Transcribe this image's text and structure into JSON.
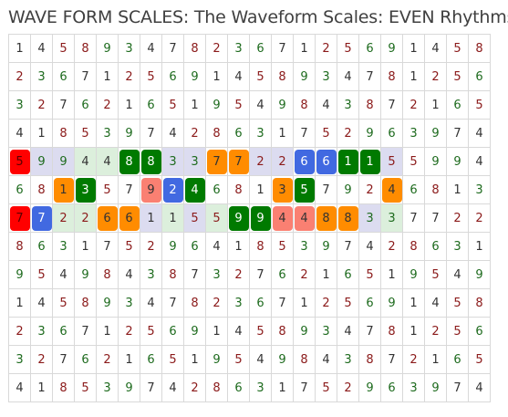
{
  "title": "WAVE FORM SCALES: The Waveform Scales: EVEN Rhythms",
  "colors": {
    "red": "#ff0000",
    "blue": "#4169e1",
    "green": "#007a00",
    "orange": "#ff8c00",
    "salmon": "#fa8072",
    "row_band": "#dcdcf0",
    "pale_green": "#dcefdc",
    "digit": "#333333",
    "digit_warm": "#8b1a1a",
    "digit_green": "#1e6b1e"
  },
  "grid": {
    "rows": [
      [
        "1",
        "4",
        "5",
        "8",
        "9",
        "3",
        "4",
        "7",
        "8",
        "2",
        "3",
        "6",
        "7",
        "1",
        "2",
        "5",
        "6",
        "9",
        "1",
        "4",
        "5",
        "8"
      ],
      [
        "2",
        "3",
        "6",
        "7",
        "1",
        "2",
        "5",
        "6",
        "9",
        "1",
        "4",
        "5",
        "8",
        "9",
        "3",
        "4",
        "7",
        "8",
        "1",
        "2",
        "5",
        "6"
      ],
      [
        "3",
        "2",
        "7",
        "6",
        "2",
        "1",
        "6",
        "5",
        "1",
        "9",
        "5",
        "4",
        "9",
        "8",
        "4",
        "3",
        "8",
        "7",
        "2",
        "1",
        "6",
        "5"
      ],
      [
        "4",
        "1",
        "8",
        "5",
        "3",
        "9",
        "7",
        "4",
        "2",
        "8",
        "6",
        "3",
        "1",
        "7",
        "5",
        "2",
        "9",
        "6",
        "3",
        "9",
        "7",
        "4"
      ],
      [
        "5",
        "9",
        "9",
        "4",
        "4",
        "8",
        "8",
        "3",
        "3",
        "7",
        "7",
        "2",
        "2",
        "6",
        "6",
        "1",
        "1",
        "5",
        "5",
        "9",
        "9",
        "4"
      ],
      [
        "6",
        "8",
        "1",
        "3",
        "5",
        "7",
        "9",
        "2",
        "4",
        "6",
        "8",
        "1",
        "3",
        "5",
        "7",
        "9",
        "2",
        "4",
        "6",
        "8",
        "1",
        "3"
      ],
      [
        "7",
        "7",
        "2",
        "2",
        "6",
        "6",
        "1",
        "1",
        "5",
        "5",
        "9",
        "9",
        "4",
        "4",
        "8",
        "8",
        "3",
        "3",
        "7",
        "7",
        "2",
        "2"
      ],
      [
        "8",
        "6",
        "3",
        "1",
        "7",
        "5",
        "2",
        "9",
        "6",
        "4",
        "1",
        "8",
        "5",
        "3",
        "9",
        "7",
        "4",
        "2",
        "8",
        "6",
        "3",
        "1"
      ],
      [
        "9",
        "5",
        "4",
        "9",
        "8",
        "4",
        "3",
        "8",
        "7",
        "3",
        "2",
        "7",
        "6",
        "2",
        "1",
        "6",
        "5",
        "1",
        "9",
        "5",
        "4",
        "9"
      ],
      [
        "1",
        "4",
        "5",
        "8",
        "9",
        "3",
        "4",
        "7",
        "8",
        "2",
        "3",
        "6",
        "7",
        "1",
        "2",
        "5",
        "6",
        "9",
        "1",
        "4",
        "5",
        "8"
      ],
      [
        "2",
        "3",
        "6",
        "7",
        "1",
        "2",
        "5",
        "6",
        "9",
        "1",
        "4",
        "5",
        "8",
        "9",
        "3",
        "4",
        "7",
        "8",
        "1",
        "2",
        "5",
        "6"
      ],
      [
        "3",
        "2",
        "7",
        "6",
        "2",
        "1",
        "6",
        "5",
        "1",
        "9",
        "5",
        "4",
        "9",
        "8",
        "4",
        "3",
        "8",
        "7",
        "2",
        "1",
        "6",
        "5"
      ],
      [
        "4",
        "1",
        "8",
        "5",
        "3",
        "9",
        "7",
        "4",
        "2",
        "8",
        "6",
        "3",
        "1",
        "7",
        "5",
        "2",
        "9",
        "6",
        "3",
        "9",
        "7",
        "4"
      ]
    ],
    "highlights": [
      {
        "row": 4,
        "col": 0,
        "color": "red"
      },
      {
        "row": 4,
        "col": 1,
        "color": "row_band"
      },
      {
        "row": 4,
        "col": 2,
        "color": "row_band"
      },
      {
        "row": 4,
        "col": 3,
        "color": "pale_green"
      },
      {
        "row": 4,
        "col": 4,
        "color": "pale_green"
      },
      {
        "row": 4,
        "col": 5,
        "color": "green"
      },
      {
        "row": 4,
        "col": 6,
        "color": "green"
      },
      {
        "row": 4,
        "col": 7,
        "color": "row_band"
      },
      {
        "row": 4,
        "col": 8,
        "color": "row_band"
      },
      {
        "row": 4,
        "col": 9,
        "color": "orange"
      },
      {
        "row": 4,
        "col": 10,
        "color": "orange"
      },
      {
        "row": 4,
        "col": 11,
        "color": "row_band"
      },
      {
        "row": 4,
        "col": 12,
        "color": "row_band"
      },
      {
        "row": 4,
        "col": 13,
        "color": "blue"
      },
      {
        "row": 4,
        "col": 14,
        "color": "blue"
      },
      {
        "row": 4,
        "col": 15,
        "color": "green"
      },
      {
        "row": 4,
        "col": 16,
        "color": "green"
      },
      {
        "row": 4,
        "col": 17,
        "color": "row_band"
      },
      {
        "row": 5,
        "col": 2,
        "color": "orange"
      },
      {
        "row": 5,
        "col": 3,
        "color": "green"
      },
      {
        "row": 5,
        "col": 6,
        "color": "salmon"
      },
      {
        "row": 5,
        "col": 7,
        "color": "blue"
      },
      {
        "row": 5,
        "col": 8,
        "color": "green"
      },
      {
        "row": 5,
        "col": 12,
        "color": "orange"
      },
      {
        "row": 5,
        "col": 13,
        "color": "green"
      },
      {
        "row": 5,
        "col": 17,
        "color": "orange"
      },
      {
        "row": 6,
        "col": 0,
        "color": "red"
      },
      {
        "row": 6,
        "col": 1,
        "color": "blue"
      },
      {
        "row": 6,
        "col": 2,
        "color": "pale_green"
      },
      {
        "row": 6,
        "col": 3,
        "color": "pale_green"
      },
      {
        "row": 6,
        "col": 4,
        "color": "orange"
      },
      {
        "row": 6,
        "col": 5,
        "color": "orange"
      },
      {
        "row": 6,
        "col": 6,
        "color": "row_band"
      },
      {
        "row": 6,
        "col": 7,
        "color": "pale_green"
      },
      {
        "row": 6,
        "col": 8,
        "color": "row_band"
      },
      {
        "row": 6,
        "col": 9,
        "color": "pale_green"
      },
      {
        "row": 6,
        "col": 10,
        "color": "green"
      },
      {
        "row": 6,
        "col": 11,
        "color": "green"
      },
      {
        "row": 6,
        "col": 12,
        "color": "salmon"
      },
      {
        "row": 6,
        "col": 13,
        "color": "salmon"
      },
      {
        "row": 6,
        "col": 14,
        "color": "orange"
      },
      {
        "row": 6,
        "col": 15,
        "color": "orange"
      },
      {
        "row": 6,
        "col": 16,
        "color": "row_band"
      },
      {
        "row": 6,
        "col": 17,
        "color": "pale_green"
      }
    ]
  }
}
